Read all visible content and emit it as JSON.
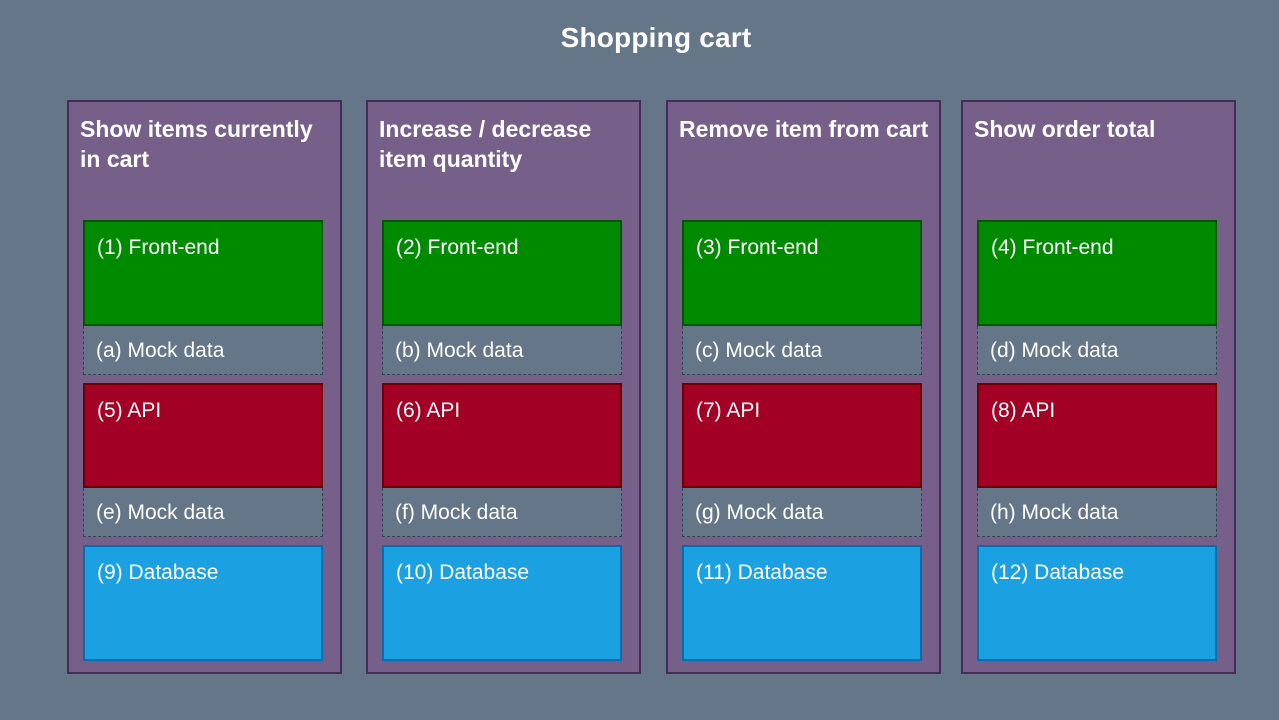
{
  "title": "Shopping cart",
  "columns": [
    {
      "title": "Show items currently in cart",
      "frontend": "(1) Front-end",
      "mock_frontend": "(a) Mock data",
      "api": "(5) API",
      "mock_api": "(e) Mock data",
      "database": "(9) Database"
    },
    {
      "title": "Increase / decrease item quantity",
      "frontend": "(2) Front-end",
      "mock_frontend": "(b) Mock data",
      "api": "(6) API",
      "mock_api": "(f) Mock data",
      "database": "(10) Database"
    },
    {
      "title": "Remove item from cart",
      "frontend": "(3) Front-end",
      "mock_frontend": "(c) Mock data",
      "api": "(7) API",
      "mock_api": "(g) Mock data",
      "database": "(11) Database"
    },
    {
      "title": "Show order total",
      "frontend": "(4) Front-end",
      "mock_frontend": "(d) Mock data",
      "api": "(8) API",
      "mock_api": "(h) Mock data",
      "database": "(12) Database"
    }
  ],
  "colors": {
    "background": "#647687",
    "column": "#76608a",
    "frontend": "#008a00",
    "api": "#a20025",
    "database": "#1ba1e2",
    "mock": "#647687"
  }
}
